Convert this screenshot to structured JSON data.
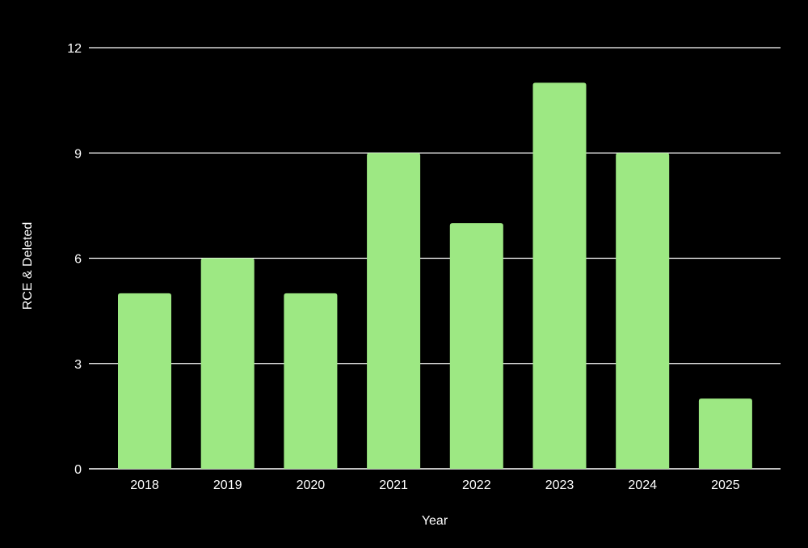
{
  "chart_data": {
    "type": "bar",
    "title": "",
    "xlabel": "Year",
    "ylabel": "RCE & Deleted",
    "categories": [
      "2018",
      "2019",
      "2020",
      "2021",
      "2022",
      "2023",
      "2024",
      "2025"
    ],
    "values": [
      5,
      6,
      5,
      9,
      7,
      11,
      9,
      2
    ],
    "ylim": [
      0,
      12
    ],
    "yticks": [
      "0",
      "3",
      "6",
      "9",
      "12"
    ],
    "grid": true,
    "legend": "none",
    "colors": {
      "background": "#000000",
      "bar": "#9de883",
      "gridline": "#ffffff",
      "text": "#ffffff"
    }
  }
}
